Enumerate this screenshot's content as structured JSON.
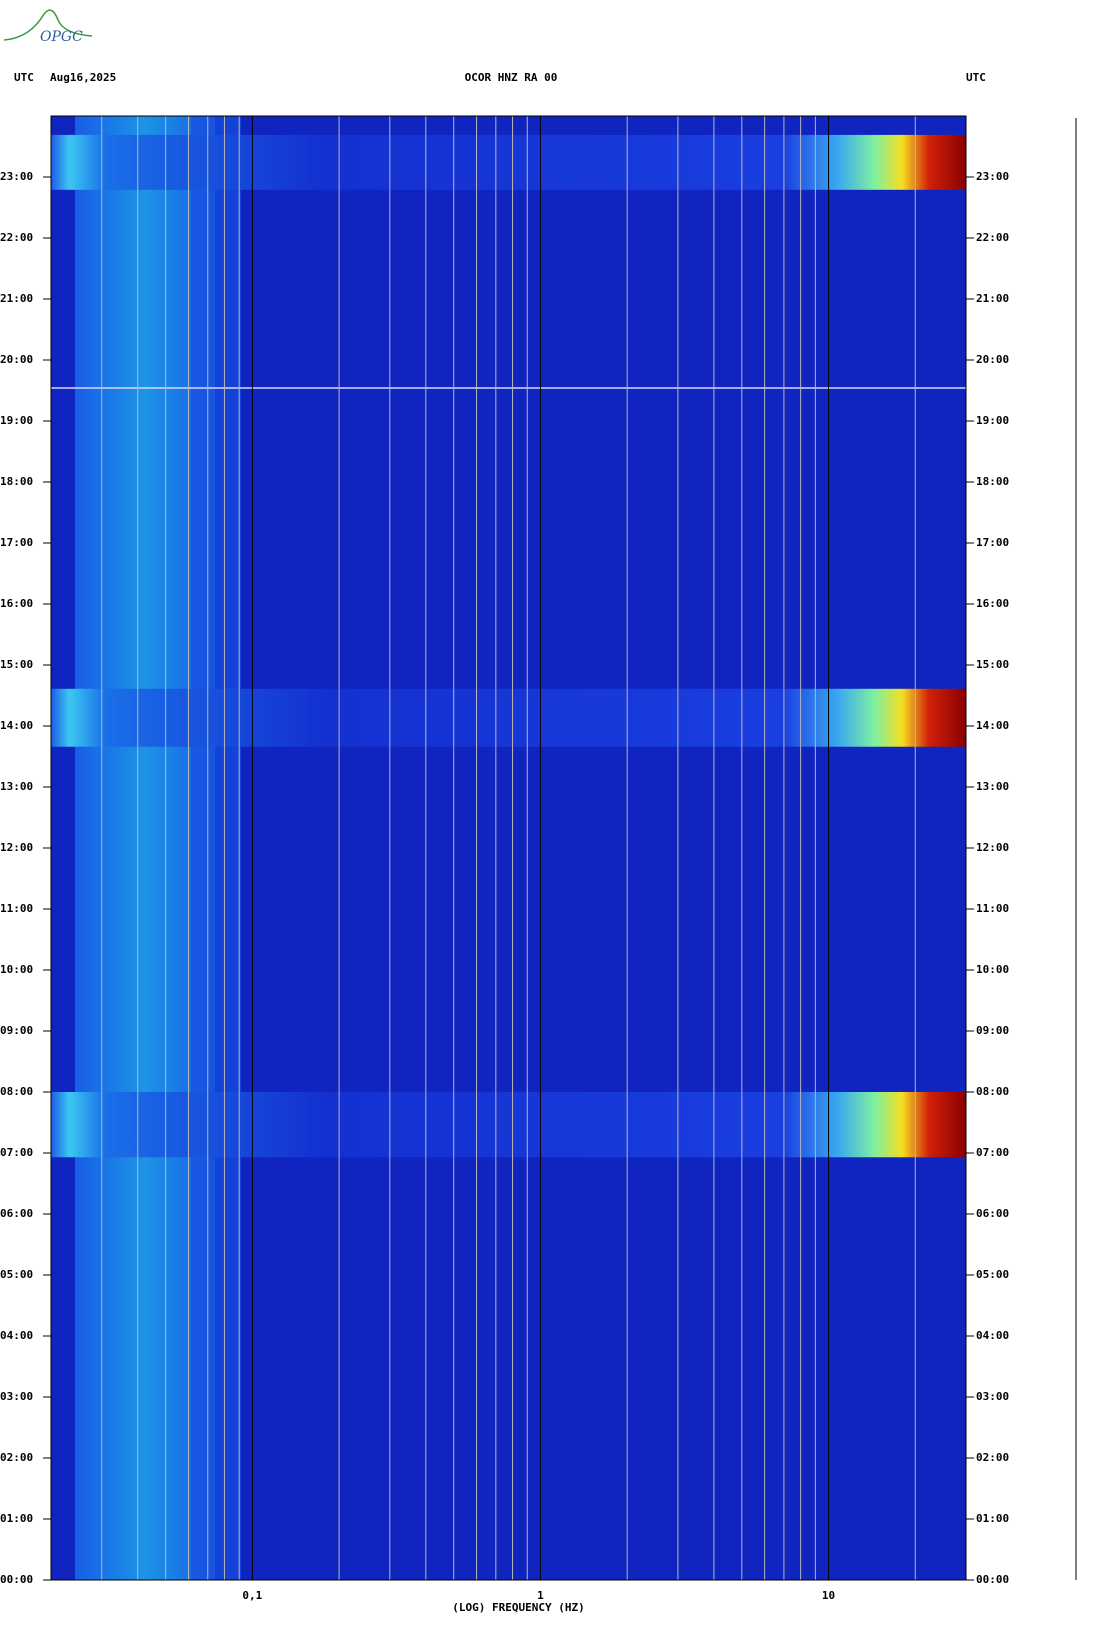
{
  "logo": "OPGC",
  "header": {
    "left": "UTC",
    "date": "Aug16,2025",
    "station": "OCOR HNZ RA 00",
    "right": "UTC"
  },
  "chart_data": {
    "type": "spectrogram",
    "xlabel": "(LOG) FREQUENCY (HZ)",
    "xscale": "log",
    "xlim": [
      0.02,
      30
    ],
    "xticks": [
      {
        "value": 0.1,
        "label": "0,1"
      },
      1,
      10
    ],
    "xminorticks": [
      0.03,
      0.04,
      0.05,
      0.06,
      0.07,
      0.08,
      0.09,
      0.2,
      0.3,
      0.4,
      0.5,
      0.6,
      0.7,
      0.8,
      0.9,
      2,
      3,
      4,
      5,
      6,
      7,
      8,
      9,
      20
    ],
    "ylim": [
      0,
      24
    ],
    "yticks": [
      {
        "value": 0,
        "label": "00:00"
      },
      {
        "value": 1,
        "label": "01:00"
      },
      {
        "value": 2,
        "label": "02:00"
      },
      {
        "value": 3,
        "label": "03:00"
      },
      {
        "value": 4,
        "label": "04:00"
      },
      {
        "value": 5,
        "label": "05:00"
      },
      {
        "value": 6,
        "label": "06:00"
      },
      {
        "value": 7,
        "label": "07:00"
      },
      {
        "value": 8,
        "label": "08:00"
      },
      {
        "value": 9,
        "label": "09:00"
      },
      {
        "value": 10,
        "label": "10:00"
      },
      {
        "value": 11,
        "label": "11:00"
      },
      {
        "value": 12,
        "label": "12:00"
      },
      {
        "value": 13,
        "label": "13:00"
      },
      {
        "value": 14,
        "label": "14:00"
      },
      {
        "value": 15,
        "label": "15:00"
      },
      {
        "value": 16,
        "label": "16:00"
      },
      {
        "value": 17,
        "label": "17:00"
      },
      {
        "value": 18,
        "label": "18:00"
      },
      {
        "value": 19,
        "label": "19:00"
      },
      {
        "value": 20,
        "label": "20:00"
      },
      {
        "value": 21,
        "label": "21:00"
      },
      {
        "value": 22,
        "label": "22:00"
      },
      {
        "value": 23,
        "label": "23:00"
      }
    ],
    "bursts": [
      {
        "start": 6.93,
        "end": 8.0
      },
      {
        "start": 13.66,
        "end": 14.61
      },
      {
        "start": 22.79,
        "end": 23.69
      }
    ],
    "gap": 19.54
  }
}
